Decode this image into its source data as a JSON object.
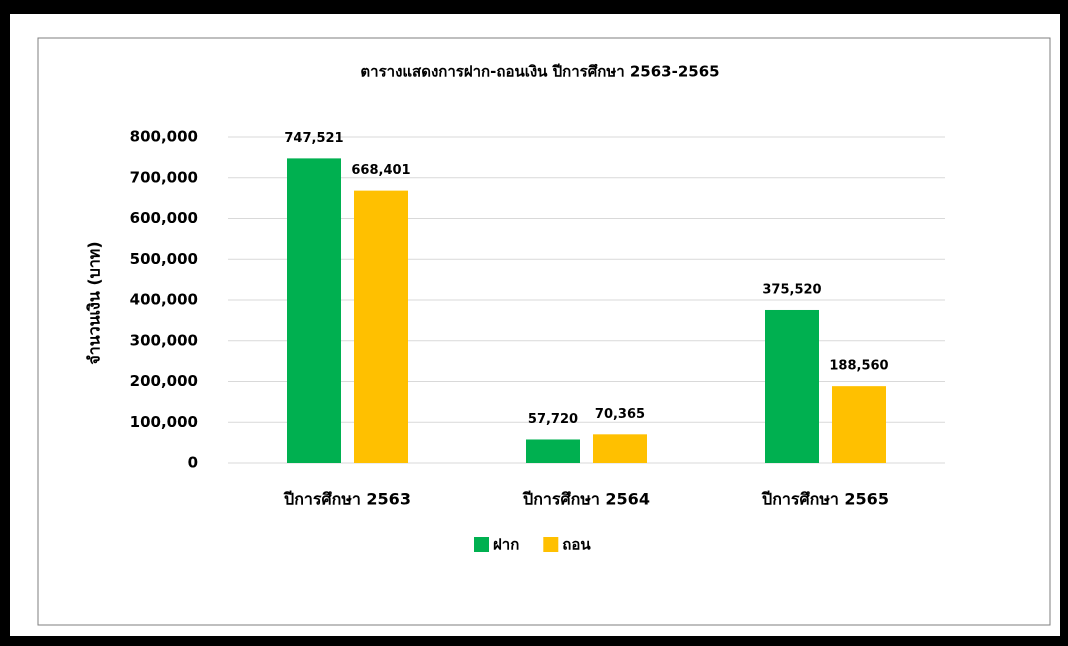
{
  "chart_data": {
    "type": "bar",
    "title": "ตารางแสดงการฝาก-ถอนเงิน ปีการศึกษา 2563-2565",
    "y_label": "จำนวนเงิน (บาท)",
    "categories": [
      "ปีการศึกษา 2563",
      "ปีการศึกษา 2564",
      "ปีการศึกษา 2565"
    ],
    "series": [
      {
        "name": "ฝาก",
        "color": "#00b050",
        "values": [
          747521,
          57720,
          375520
        ],
        "value_labels": [
          "747,521",
          "57,720",
          "375,520"
        ]
      },
      {
        "name": "ถอน",
        "color": "#ffc000",
        "values": [
          668401,
          70365,
          188560
        ],
        "value_labels": [
          "668,401",
          "70,365",
          "188,560"
        ]
      }
    ],
    "ylim": [
      0,
      800000
    ],
    "yticks": [
      0,
      {
        "value": 100000,
        "label": "100,000"
      },
      {
        "value": 200000,
        "label": "200,000"
      },
      {
        "value": 300000,
        "label": "300,000"
      },
      {
        "value": 400000,
        "label": "400,000"
      },
      {
        "value": 500000,
        "label": "500,000"
      },
      {
        "value": 600000,
        "label": "600,000"
      },
      {
        "value": 700000,
        "label": "700,000"
      },
      {
        "value": 800000,
        "label": "800,000"
      }
    ],
    "grid": true,
    "legend": "bottom"
  }
}
